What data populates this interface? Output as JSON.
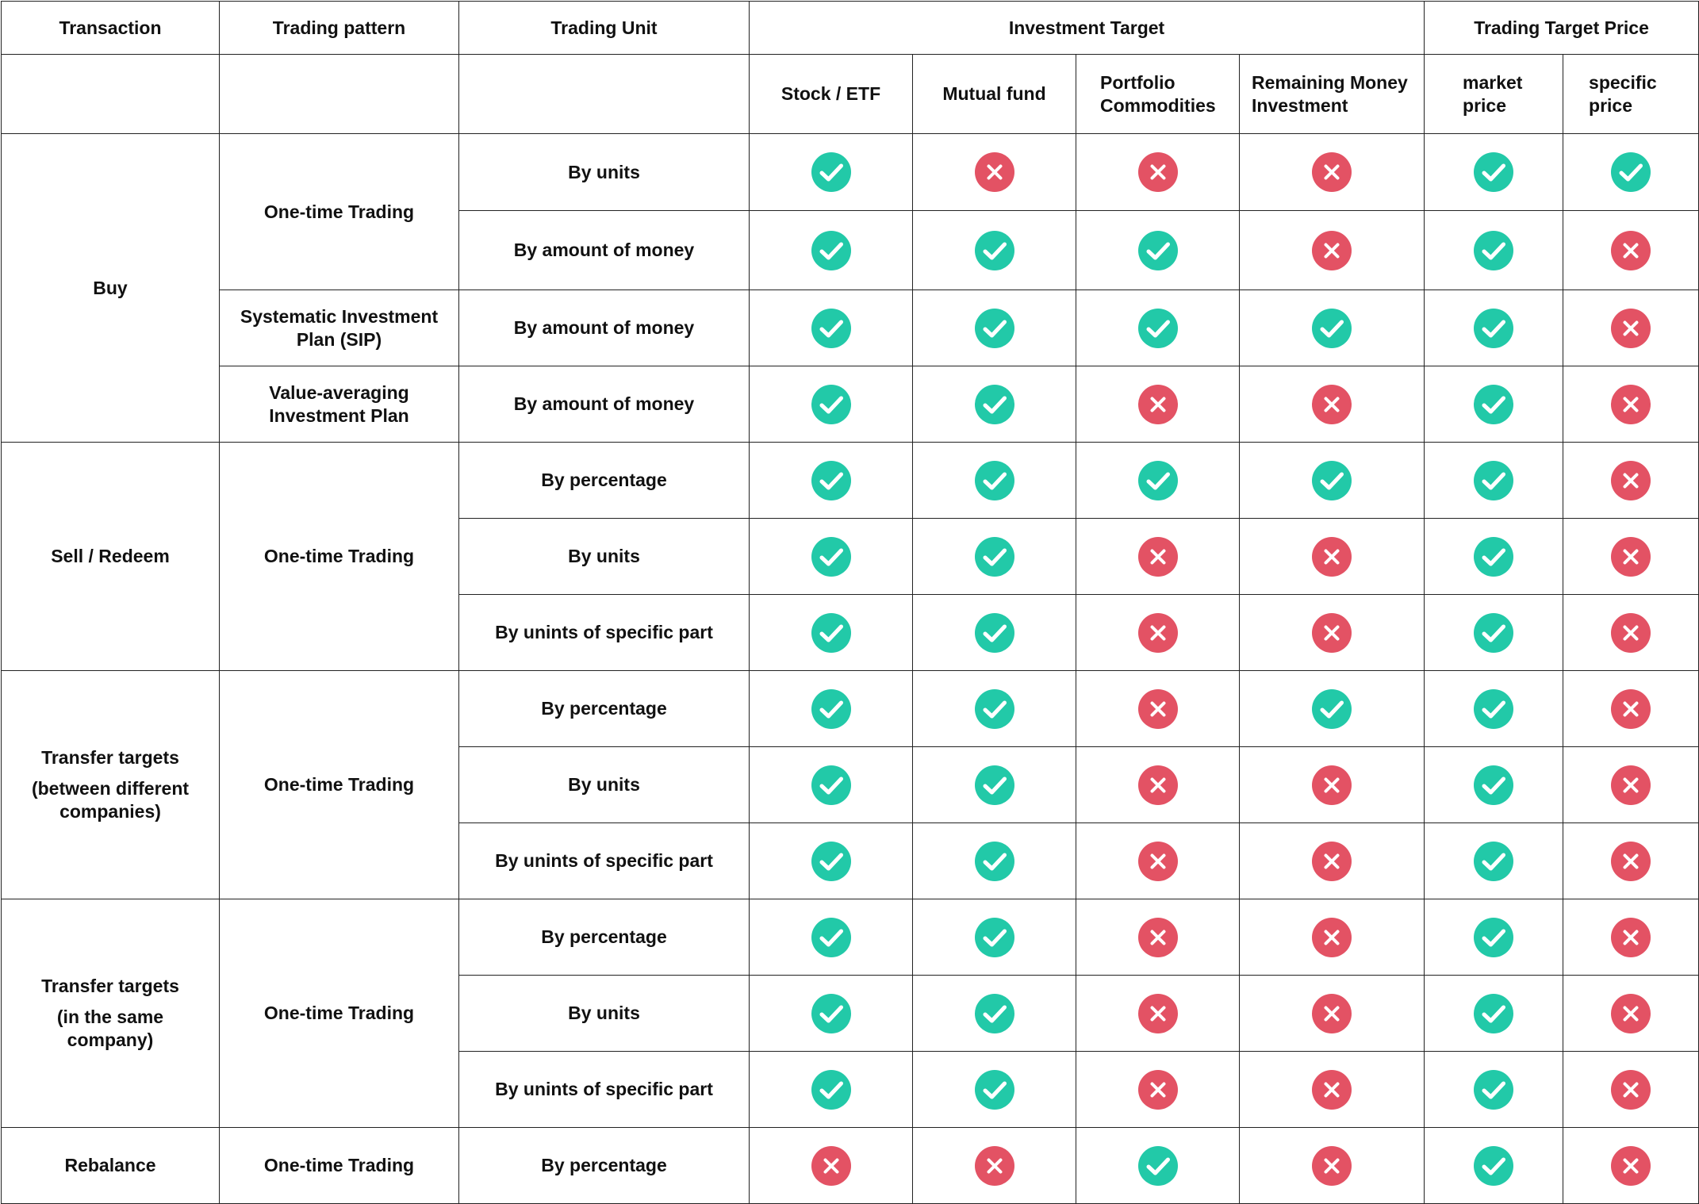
{
  "header": {
    "transaction": "Transaction",
    "trading_pattern": "Trading pattern",
    "trading_unit": "Trading Unit",
    "investment_target": "Investment Target",
    "trading_target_price": "Trading Target Price"
  },
  "subheader": {
    "stock_etf": "Stock / ETF",
    "mutual_fund": "Mutual fund",
    "portfolio_commodities": "Portfolio Commodities",
    "remaining_money_investment": "Remaining Money Investment",
    "market_price": "market price",
    "specific_price": "specific price"
  },
  "status_colors": {
    "check": "#22c9a8",
    "cross": "#e35264"
  },
  "status_icons": {
    "check": "check-icon",
    "cross": "cross-icon"
  },
  "groups": [
    {
      "transaction": "Buy",
      "patterns": [
        {
          "name": "One-time Trading",
          "rows": [
            {
              "unit": "By units",
              "flags": [
                true,
                false,
                false,
                false,
                true,
                true
              ]
            },
            {
              "unit": "By amount of money",
              "flags": [
                true,
                true,
                true,
                false,
                true,
                false
              ]
            }
          ]
        },
        {
          "name": "Systematic Investment Plan (SIP)",
          "rows": [
            {
              "unit": "By amount of money",
              "flags": [
                true,
                true,
                true,
                true,
                true,
                false
              ]
            }
          ]
        },
        {
          "name": "Value-averaging Investment Plan",
          "rows": [
            {
              "unit": "By amount of money",
              "flags": [
                true,
                true,
                false,
                false,
                true,
                false
              ]
            }
          ]
        }
      ]
    },
    {
      "transaction": "Sell / Redeem",
      "patterns": [
        {
          "name": "One-time Trading",
          "rows": [
            {
              "unit": "By percentage",
              "flags": [
                true,
                true,
                true,
                true,
                true,
                false
              ]
            },
            {
              "unit": "By units",
              "flags": [
                true,
                true,
                false,
                false,
                true,
                false
              ]
            },
            {
              "unit": "By unints of specific part",
              "flags": [
                true,
                true,
                false,
                false,
                true,
                false
              ]
            }
          ]
        }
      ]
    },
    {
      "transaction": "Transfer targets\n(between different companies)",
      "patterns": [
        {
          "name": "One-time Trading",
          "rows": [
            {
              "unit": "By percentage",
              "flags": [
                true,
                true,
                false,
                true,
                true,
                false
              ]
            },
            {
              "unit": "By units",
              "flags": [
                true,
                true,
                false,
                false,
                true,
                false
              ]
            },
            {
              "unit": "By unints of specific part",
              "flags": [
                true,
                true,
                false,
                false,
                true,
                false
              ]
            }
          ]
        }
      ]
    },
    {
      "transaction": "Transfer targets\n(in the same company)",
      "patterns": [
        {
          "name": "One-time Trading",
          "rows": [
            {
              "unit": "By percentage",
              "flags": [
                true,
                true,
                false,
                false,
                true,
                false
              ]
            },
            {
              "unit": "By units",
              "flags": [
                true,
                true,
                false,
                false,
                true,
                false
              ]
            },
            {
              "unit": "By unints of specific part",
              "flags": [
                true,
                true,
                false,
                false,
                true,
                false
              ]
            }
          ]
        }
      ]
    },
    {
      "transaction": "Rebalance",
      "patterns": [
        {
          "name": "One-time Trading",
          "rows": [
            {
              "unit": "By percentage",
              "flags": [
                false,
                false,
                true,
                false,
                true,
                false
              ]
            }
          ]
        }
      ]
    }
  ]
}
